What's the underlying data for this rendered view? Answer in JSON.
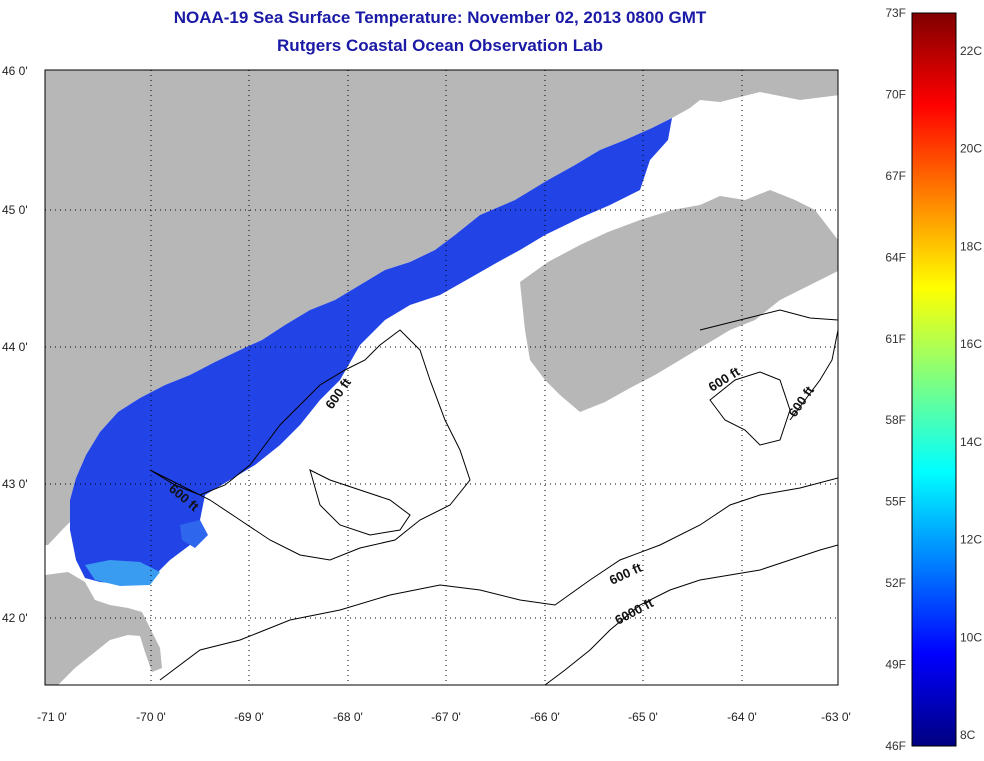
{
  "header": {
    "title_line1": "NOAA-19 Sea Surface Temperature:  November 02, 2013 0800 GMT",
    "title_line2": "Rutgers Coastal Ocean Observation Lab"
  },
  "map": {
    "lat_labels": [
      "46 0'",
      "45 0'",
      "44 0'",
      "43 0'",
      "42 0'"
    ],
    "lon_labels": [
      "-71 0'",
      "-70 0'",
      "-69 0'",
      "-68 0'",
      "-67 0'",
      "-66 0'",
      "-65 0'",
      "-64 0'",
      "-63 0'"
    ],
    "contour_labels": [
      "600 ft",
      "600 ft",
      "600 ft",
      "600 ft",
      "600 ft",
      "6000 ft"
    ],
    "colors": {
      "land": "#b7b7b7",
      "ocean_no_data": "#ffffff",
      "sst_cold": "#1f3fe0",
      "sst_mid": "#3a72f0",
      "contour": "#000000"
    }
  },
  "colorbar": {
    "fahrenheit_labels": [
      "73F",
      "70F",
      "67F",
      "64F",
      "61F",
      "58F",
      "55F",
      "52F",
      "49F",
      "46F"
    ],
    "celsius_labels": [
      "22C",
      "20C",
      "18C",
      "16C",
      "14C",
      "12C",
      "10C",
      "8C"
    ],
    "gradient_stops": [
      "#000080",
      "#0000ff",
      "#0080ff",
      "#00ffff",
      "#80ff80",
      "#ffff00",
      "#ff8000",
      "#ff0000",
      "#800000"
    ]
  }
}
